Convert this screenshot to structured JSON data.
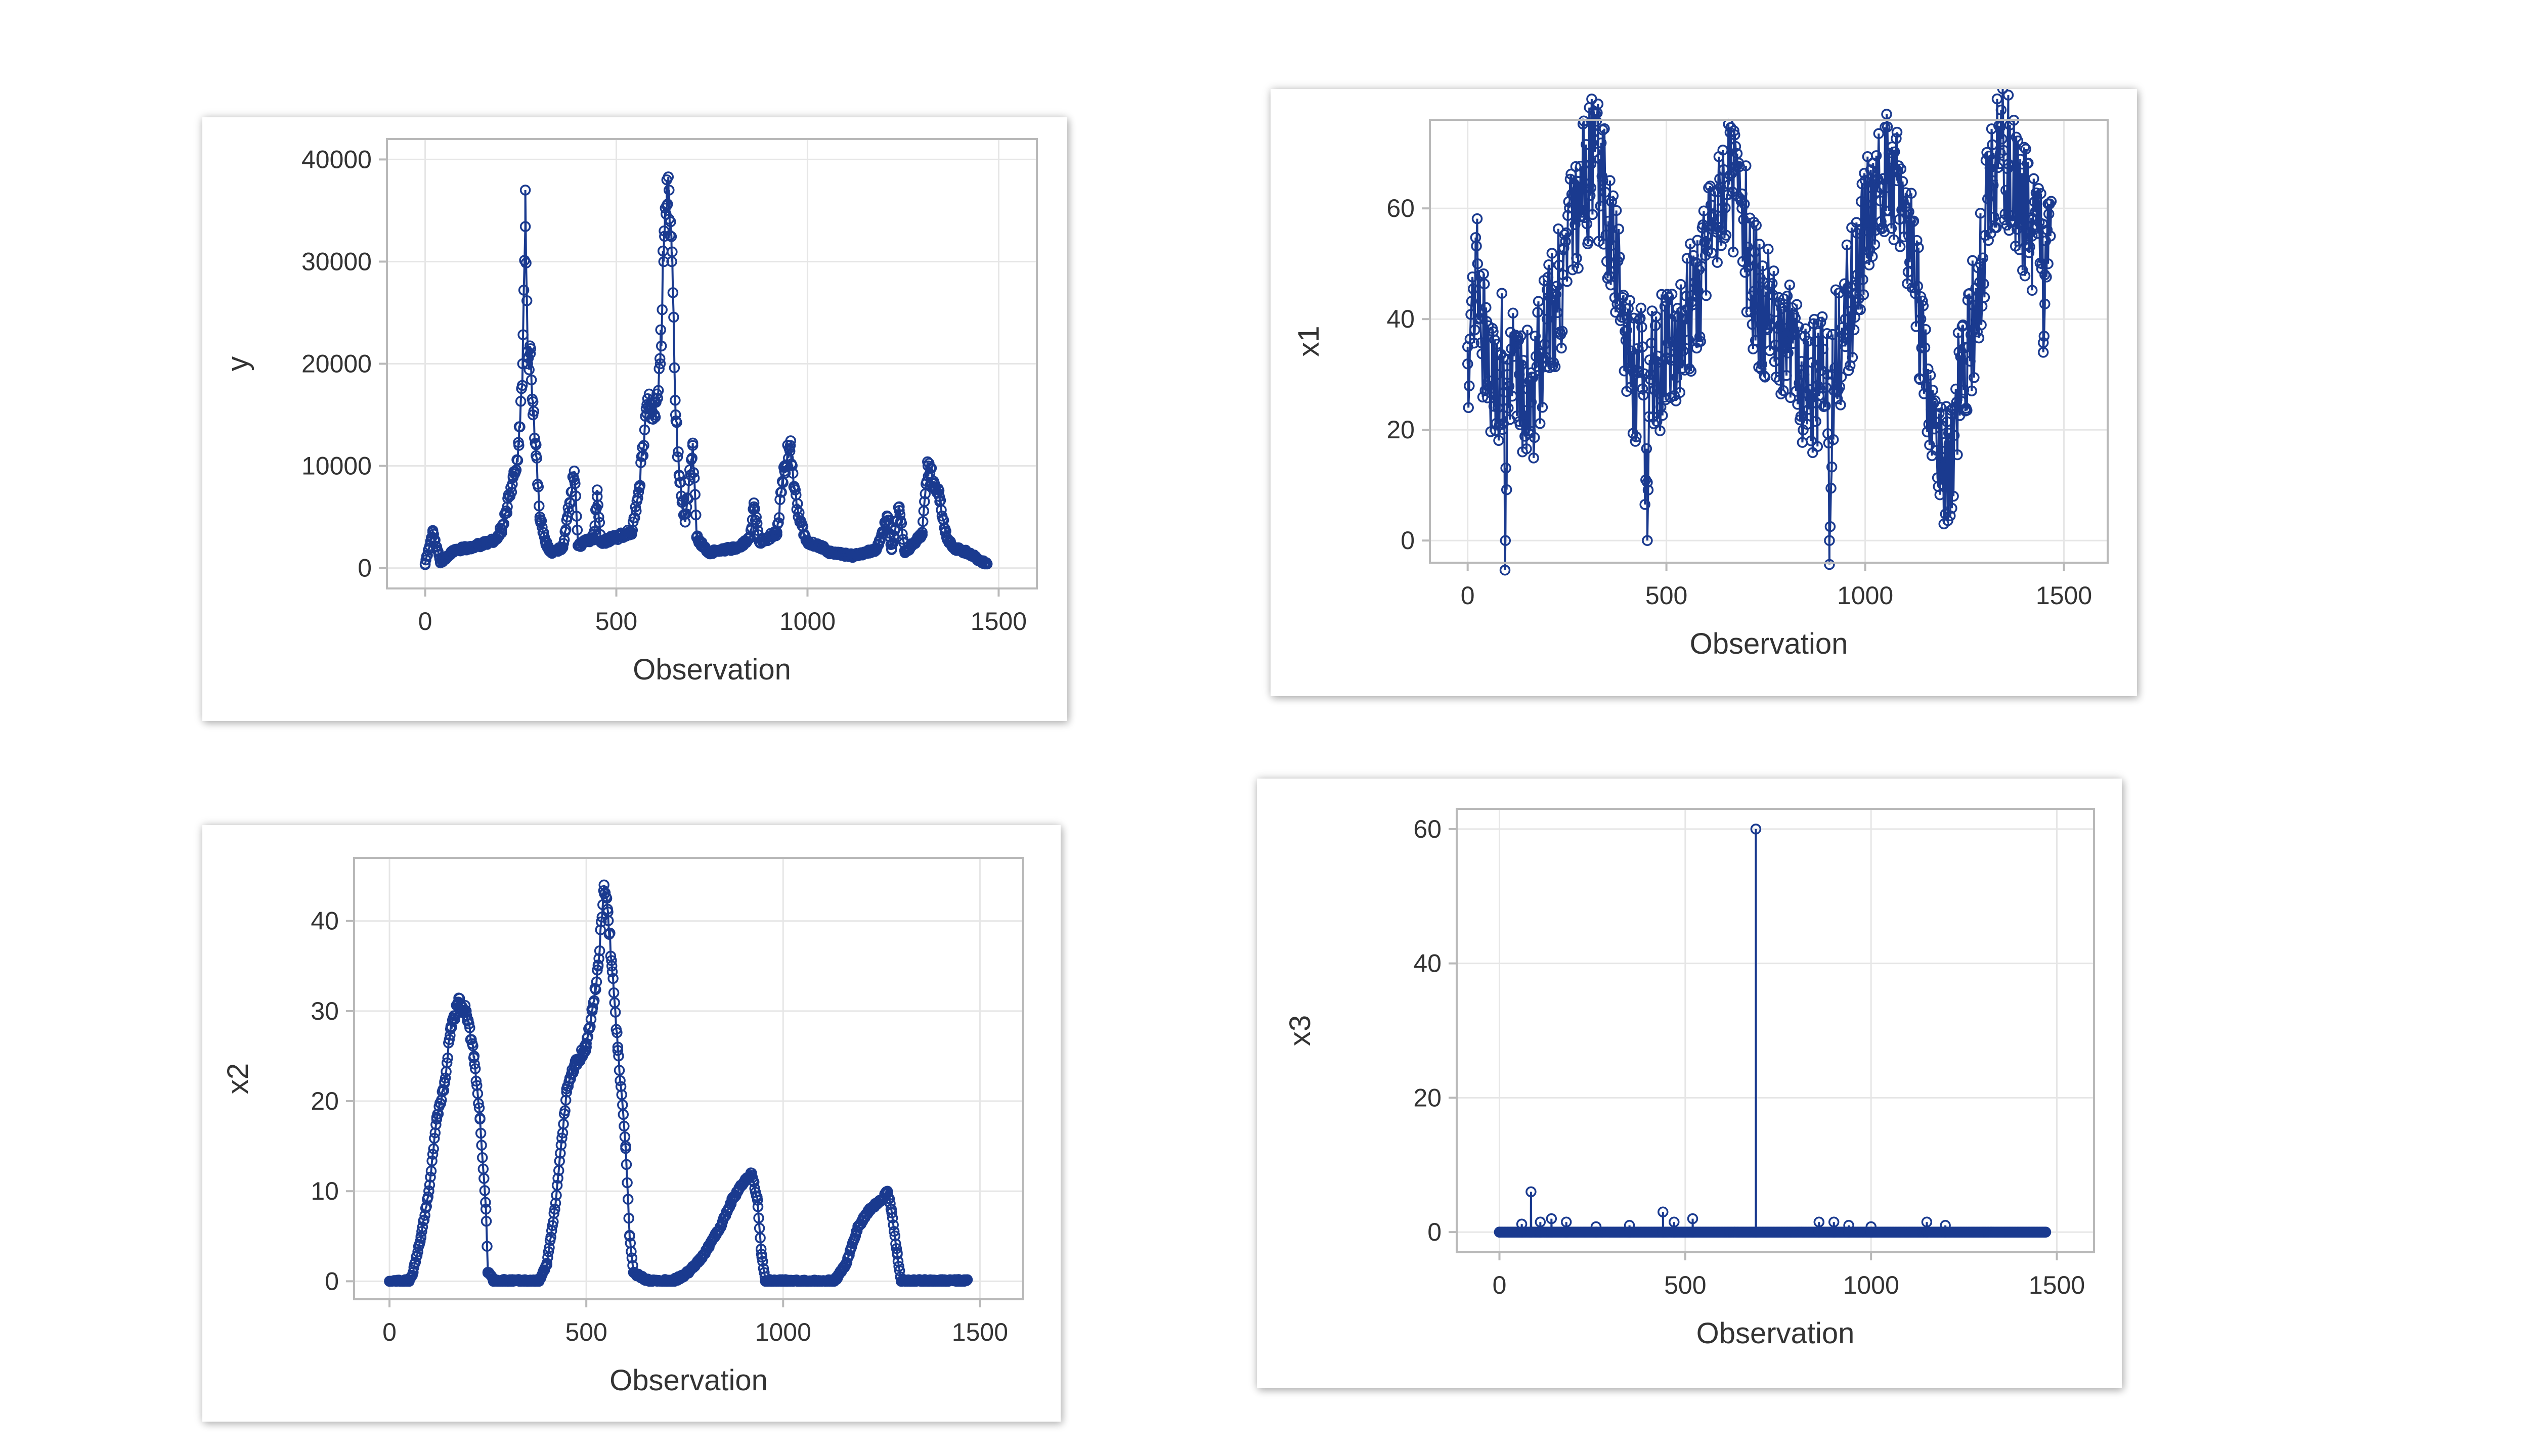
{
  "theme": {
    "series_color": "#1a3a8f",
    "frame_color": "#b9b9b9",
    "grid_color": "#e6e6e6",
    "text_color": "#333333"
  },
  "chart_data": [
    {
      "id": "y",
      "type": "line",
      "marker": "circle",
      "xlabel": "Observation",
      "ylabel": "y",
      "xticks": [
        0,
        500,
        1000,
        1500
      ],
      "yticks": [
        0,
        10000,
        20000,
        30000,
        40000
      ],
      "xlim": [
        -100,
        1600
      ],
      "ylim": [
        -2000,
        42000
      ],
      "n_obs": 1470,
      "series": [
        {
          "name": "y",
          "keypoints": [
            [
              0,
              400
            ],
            [
              20,
              3500
            ],
            [
              40,
              600
            ],
            [
              80,
              1800
            ],
            [
              120,
              2000
            ],
            [
              160,
              2500
            ],
            [
              180,
              2700
            ],
            [
              200,
              3800
            ],
            [
              215,
              6000
            ],
            [
              230,
              9000
            ],
            [
              245,
              12000
            ],
            [
              255,
              20000
            ],
            [
              262,
              37000
            ],
            [
              268,
              20000
            ],
            [
              275,
              21000
            ],
            [
              282,
              15000
            ],
            [
              290,
              11000
            ],
            [
              300,
              5000
            ],
            [
              315,
              2500
            ],
            [
              330,
              1500
            ],
            [
              360,
              2000
            ],
            [
              390,
              9500
            ],
            [
              400,
              2200
            ],
            [
              440,
              3000
            ],
            [
              450,
              7000
            ],
            [
              460,
              2500
            ],
            [
              500,
              3000
            ],
            [
              540,
              3500
            ],
            [
              560,
              8000
            ],
            [
              580,
              16000
            ],
            [
              600,
              15000
            ],
            [
              615,
              20000
            ],
            [
              625,
              33000
            ],
            [
              632,
              38000
            ],
            [
              638,
              37000
            ],
            [
              645,
              30000
            ],
            [
              655,
              15000
            ],
            [
              665,
              9000
            ],
            [
              680,
              4500
            ],
            [
              700,
              12000
            ],
            [
              710,
              3000
            ],
            [
              740,
              1500
            ],
            [
              780,
              1800
            ],
            [
              820,
              2000
            ],
            [
              850,
              3000
            ],
            [
              860,
              6000
            ],
            [
              875,
              2500
            ],
            [
              920,
              3500
            ],
            [
              940,
              10000
            ],
            [
              955,
              12000
            ],
            [
              965,
              8000
            ],
            [
              980,
              4500
            ],
            [
              1000,
              2500
            ],
            [
              1040,
              2000
            ],
            [
              1060,
              1500
            ],
            [
              1120,
              1200
            ],
            [
              1180,
              1800
            ],
            [
              1210,
              5000
            ],
            [
              1220,
              1800
            ],
            [
              1240,
              6000
            ],
            [
              1255,
              1500
            ],
            [
              1280,
              2500
            ],
            [
              1300,
              3500
            ],
            [
              1315,
              10000
            ],
            [
              1330,
              8500
            ],
            [
              1345,
              7000
            ],
            [
              1360,
              3500
            ],
            [
              1380,
              2000
            ],
            [
              1420,
              1500
            ],
            [
              1450,
              800
            ],
            [
              1470,
              400
            ]
          ]
        }
      ]
    },
    {
      "id": "x1",
      "type": "line",
      "marker": "circle",
      "xlabel": "Observation",
      "ylabel": "x1",
      "xticks": [
        0,
        500,
        1000,
        1500
      ],
      "yticks": [
        0,
        20,
        40,
        60
      ],
      "xlim": [
        -95,
        1610
      ],
      "ylim": [
        -4,
        76
      ],
      "n_obs": 1470,
      "series": [
        {
          "name": "x1",
          "keypoints": [
            [
              0,
              35
            ],
            [
              25,
              50
            ],
            [
              50,
              28
            ],
            [
              75,
              30
            ],
            [
              90,
              33
            ],
            [
              95,
              0
            ],
            [
              100,
              30
            ],
            [
              130,
              30
            ],
            [
              160,
              25
            ],
            [
              200,
              40
            ],
            [
              240,
              48
            ],
            [
              280,
              60
            ],
            [
              310,
              68
            ],
            [
              340,
              65
            ],
            [
              370,
              50
            ],
            [
              400,
              38
            ],
            [
              420,
              30
            ],
            [
              440,
              35
            ],
            [
              452,
              0
            ],
            [
              460,
              30
            ],
            [
              500,
              33
            ],
            [
              540,
              40
            ],
            [
              580,
              45
            ],
            [
              600,
              55
            ],
            [
              630,
              63
            ],
            [
              660,
              66
            ],
            [
              690,
              60
            ],
            [
              720,
              45
            ],
            [
              760,
              40
            ],
            [
              800,
              35
            ],
            [
              840,
              30
            ],
            [
              880,
              28
            ],
            [
              905,
              30
            ],
            [
              910,
              0
            ],
            [
              918,
              30
            ],
            [
              950,
              40
            ],
            [
              980,
              48
            ],
            [
              1000,
              56
            ],
            [
              1030,
              63
            ],
            [
              1060,
              70
            ],
            [
              1080,
              65
            ],
            [
              1110,
              55
            ],
            [
              1140,
              40
            ],
            [
              1170,
              25
            ],
            [
              1195,
              15
            ],
            [
              1210,
              12
            ],
            [
              1230,
              25
            ],
            [
              1260,
              35
            ],
            [
              1290,
              50
            ],
            [
              1320,
              65
            ],
            [
              1340,
              70
            ],
            [
              1360,
              68
            ],
            [
              1390,
              62
            ],
            [
              1420,
              55
            ],
            [
              1445,
              50
            ],
            [
              1448,
              34
            ],
            [
              1452,
              48
            ],
            [
              1460,
              50
            ]
          ]
        }
      ]
    },
    {
      "id": "x2",
      "type": "line",
      "marker": "circle",
      "xlabel": "Observation",
      "ylabel": "x2",
      "xticks": [
        0,
        500,
        1000,
        1500
      ],
      "yticks": [
        0,
        10,
        20,
        30,
        40
      ],
      "xlim": [
        -90,
        1610
      ],
      "ylim": [
        -2,
        47
      ],
      "n_obs": 1470,
      "series": [
        {
          "name": "x2",
          "keypoints": [
            [
              0,
              0
            ],
            [
              50,
              0
            ],
            [
              60,
              1
            ],
            [
              80,
              5
            ],
            [
              100,
              10
            ],
            [
              120,
              18
            ],
            [
              140,
              22
            ],
            [
              155,
              28
            ],
            [
              175,
              31
            ],
            [
              195,
              30
            ],
            [
              215,
              25
            ],
            [
              230,
              18
            ],
            [
              245,
              8
            ],
            [
              250,
              1
            ],
            [
              265,
              0
            ],
            [
              300,
              0
            ],
            [
              350,
              0
            ],
            [
              380,
              0
            ],
            [
              400,
              2
            ],
            [
              420,
              8
            ],
            [
              450,
              21
            ],
            [
              470,
              24
            ],
            [
              500,
              26
            ],
            [
              515,
              30
            ],
            [
              530,
              35
            ],
            [
              545,
              44
            ],
            [
              555,
              41
            ],
            [
              565,
              35
            ],
            [
              580,
              26
            ],
            [
              600,
              15
            ],
            [
              610,
              5
            ],
            [
              620,
              1
            ],
            [
              660,
              0
            ],
            [
              720,
              0
            ],
            [
              760,
              1
            ],
            [
              800,
              3
            ],
            [
              840,
              6
            ],
            [
              870,
              9
            ],
            [
              900,
              11
            ],
            [
              920,
              12
            ],
            [
              935,
              9
            ],
            [
              945,
              3
            ],
            [
              955,
              0
            ],
            [
              1000,
              0
            ],
            [
              1080,
              0
            ],
            [
              1130,
              0
            ],
            [
              1160,
              2
            ],
            [
              1190,
              6
            ],
            [
              1220,
              8
            ],
            [
              1250,
              9
            ],
            [
              1265,
              10
            ],
            [
              1275,
              8
            ],
            [
              1290,
              3
            ],
            [
              1300,
              0
            ],
            [
              1380,
              0
            ],
            [
              1440,
              0
            ],
            [
              1460,
              0
            ]
          ]
        }
      ]
    },
    {
      "id": "x3",
      "type": "line",
      "marker": "circle",
      "xlabel": "Observation",
      "ylabel": "x3",
      "xticks": [
        0,
        500,
        1000,
        1500
      ],
      "yticks": [
        0,
        20,
        40,
        60
      ],
      "xlim": [
        -115,
        1600
      ],
      "ylim": [
        -3,
        63
      ],
      "n_obs": 1470,
      "series": [
        {
          "name": "x3",
          "keypoints": [
            [
              0,
              0
            ],
            [
              1470,
              0
            ]
          ],
          "spikes": [
            [
              60,
              1.2
            ],
            [
              85,
              6
            ],
            [
              110,
              1.5
            ],
            [
              140,
              2
            ],
            [
              180,
              1.5
            ],
            [
              260,
              0.8
            ],
            [
              350,
              1
            ],
            [
              440,
              3
            ],
            [
              470,
              1.5
            ],
            [
              520,
              2
            ],
            [
              690,
              60
            ],
            [
              860,
              1.5
            ],
            [
              900,
              1.5
            ],
            [
              940,
              1
            ],
            [
              1000,
              0.8
            ],
            [
              1150,
              1.5
            ],
            [
              1200,
              1
            ]
          ]
        }
      ]
    }
  ]
}
